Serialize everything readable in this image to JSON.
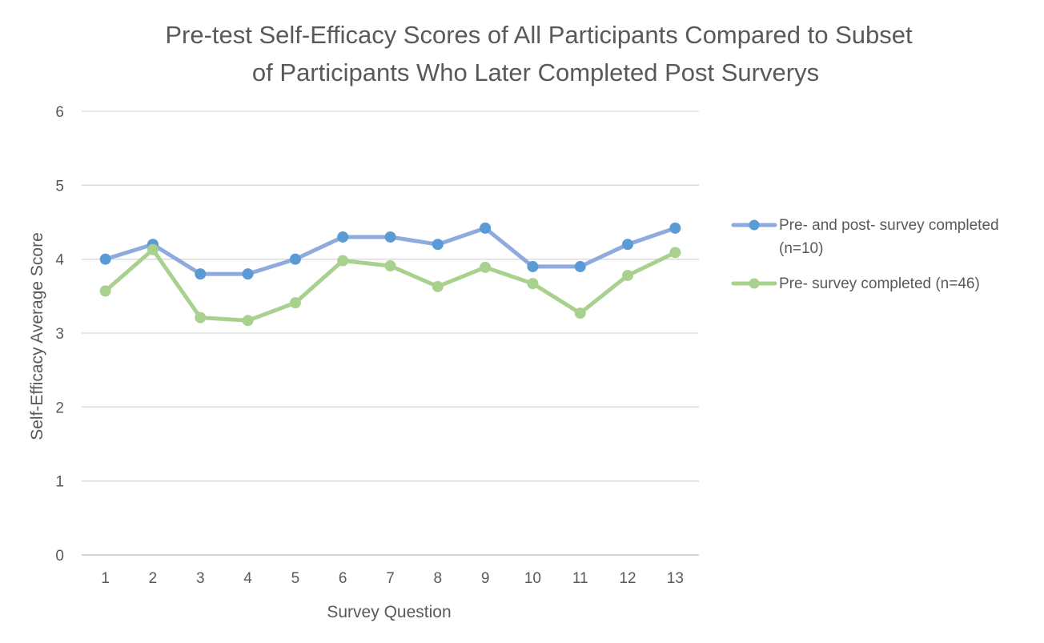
{
  "chart_data": {
    "type": "line",
    "title": "Pre-test Self-Efficacy Scores of All Participants Compared to Subset of Participants Who Later Completed Post Surverys",
    "title_lines": [
      "Pre-test Self-Efficacy Scores of All Participants Compared to Subset",
      "of Participants Who Later Completed Post Surverys"
    ],
    "xlabel": "Survey Question",
    "ylabel": "Self-Efficacy Average Score",
    "categories": [
      "1",
      "2",
      "3",
      "4",
      "5",
      "6",
      "7",
      "8",
      "9",
      "10",
      "11",
      "12",
      "13"
    ],
    "ylim": [
      0,
      6
    ],
    "yticks": [
      "0",
      "1",
      "2",
      "3",
      "4",
      "5",
      "6"
    ],
    "grid": true,
    "legend_position": "right",
    "series": [
      {
        "name": "Pre- and post- survey completed (n=10)",
        "legend_lines": [
          "Pre- and post- survey completed",
          "(n=10)"
        ],
        "line_color": "#8FAADC",
        "marker_color": "#5B9BD5",
        "values": [
          4.0,
          4.2,
          3.8,
          3.8,
          4.0,
          4.3,
          4.3,
          4.2,
          4.42,
          3.9,
          3.9,
          4.2,
          4.42
        ]
      },
      {
        "name": "Pre- survey completed (n=46)",
        "legend_lines": [
          "Pre- survey completed (n=46)"
        ],
        "line_color": "#A9D18E",
        "marker_color": "#A9D18E",
        "values": [
          3.57,
          4.13,
          3.21,
          3.17,
          3.41,
          3.98,
          3.91,
          3.63,
          3.89,
          3.67,
          3.27,
          3.78,
          4.09
        ]
      }
    ]
  }
}
